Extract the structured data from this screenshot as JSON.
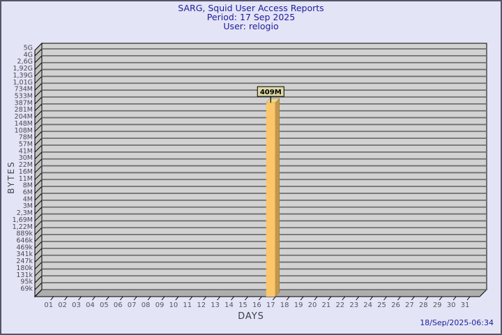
{
  "header": {
    "title": "SARG, Squid User Access Reports",
    "period": "Period: 17 Sep 2025",
    "user": "User: relogio"
  },
  "footer": {
    "generated": "18/Sep/2025-06:34"
  },
  "colors": {
    "page_bg": "#e4e4f7",
    "title_text": "#1c1c9a",
    "plot_bg": "#d2d2d2",
    "grid_line": "#6f6f6f",
    "wall": "#c0c0c0",
    "floor": "#aeaeae",
    "frame": "#000000",
    "bar_front": "#fcc66a",
    "bar_side": "#c3974a",
    "bar_top": "#eed88d",
    "bar_label_bg": "#ddd8a6",
    "y_tick_text": "#4a4a50",
    "x_tick_text": "#55555b"
  },
  "chart_data": {
    "type": "bar",
    "title": "SARG, Squid User Access Reports",
    "subtitle": "Period: 17 Sep 2025",
    "user": "User: relogio",
    "xlabel": "DAYS",
    "ylabel": "BYTES",
    "y_scale": "log",
    "legend": "none",
    "grid": true,
    "x_categories": [
      "01",
      "02",
      "03",
      "04",
      "05",
      "06",
      "07",
      "08",
      "09",
      "10",
      "11",
      "12",
      "13",
      "14",
      "15",
      "16",
      "17",
      "18",
      "19",
      "20",
      "21",
      "22",
      "23",
      "24",
      "25",
      "26",
      "27",
      "28",
      "29",
      "30",
      "31"
    ],
    "y_tick_labels": [
      "5G",
      "4G",
      "2,6G",
      "1,92G",
      "1,39G",
      "1,01G",
      "734M",
      "533M",
      "387M",
      "281M",
      "204M",
      "148M",
      "108M",
      "78M",
      "57M",
      "41M",
      "30M",
      "22M",
      "16M",
      "11M",
      "8M",
      "6M",
      "4M",
      "3M",
      "2,3M",
      "1,69M",
      "1,22M",
      "889k",
      "646k",
      "469k",
      "341k",
      "247k",
      "180k",
      "131k",
      "95k",
      "69k"
    ],
    "bars": [
      {
        "category": "17",
        "value": 409000000,
        "label": "409M"
      }
    ],
    "values": [
      0,
      0,
      0,
      0,
      0,
      0,
      0,
      0,
      0,
      0,
      0,
      0,
      0,
      0,
      0,
      0,
      409000000,
      0,
      0,
      0,
      0,
      0,
      0,
      0,
      0,
      0,
      0,
      0,
      0,
      0,
      0
    ]
  }
}
